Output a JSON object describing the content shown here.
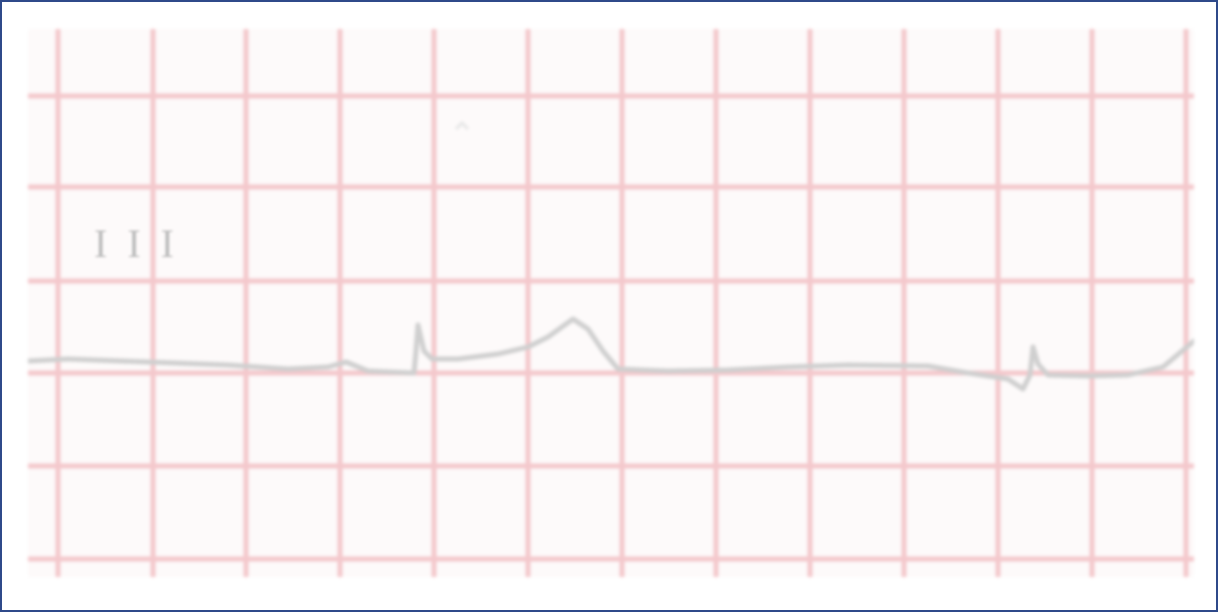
{
  "lead": {
    "label": "III"
  },
  "colors": {
    "frame_border": "#2f4a8a",
    "paper": "#fdfafa",
    "grid_line": "#f4c8cc",
    "trace": "#cfcfcf",
    "label": "#bcbcbc"
  }
}
